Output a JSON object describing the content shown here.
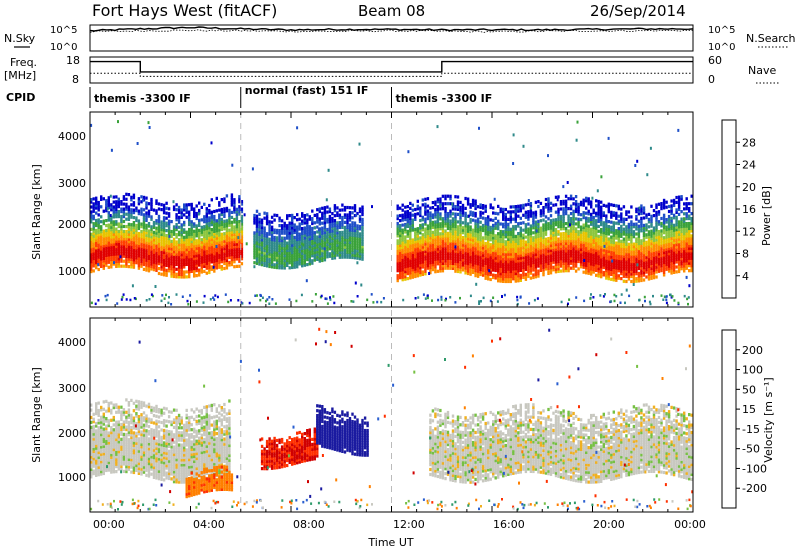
{
  "header": {
    "title": "Fort Hays West (fitACF)",
    "beam": "Beam 08",
    "date": "26/Sep/2014"
  },
  "noise_panel": {
    "left_label": "N.Sky",
    "right_label": "N.Search",
    "left_ticks": [
      "10^5",
      "10^0"
    ],
    "right_ticks": [
      "10^5",
      "10^0"
    ]
  },
  "freq_panel": {
    "left_label_line1": "Freq.",
    "left_label_line2": "[MHz]",
    "right_label": "Nave",
    "left_ticks": [
      "18",
      "8"
    ],
    "right_ticks": [
      "60",
      "0"
    ]
  },
  "cpid": {
    "label": "CPID",
    "segments": [
      {
        "name": "themis -3300 IF",
        "start_h": 0,
        "end_h": 6
      },
      {
        "name": "normal (fast) 151 IF",
        "start_h": 6,
        "end_h": 12
      },
      {
        "name": "themis -3300 IF",
        "start_h": 12,
        "end_h": 24
      }
    ]
  },
  "x_axis": {
    "label": "Time UT",
    "ticks": [
      "00:00",
      "04:00",
      "08:00",
      "12:00",
      "16:00",
      "20:00",
      "00:00"
    ]
  },
  "power_panel": {
    "ylabel": "Slant Range [km]",
    "yticks": [
      "1000",
      "2000",
      "3000",
      "4000"
    ],
    "colorbar_label": "Power [dB]",
    "colorbar_ticks": [
      "4",
      "8",
      "12",
      "16",
      "20",
      "24",
      "28"
    ],
    "colors": [
      "#0000cc",
      "#1f4fc8",
      "#2f8a8a",
      "#3aa23a",
      "#8cc63f",
      "#e8c400",
      "#ff8c00",
      "#ff4000",
      "#e00000"
    ]
  },
  "velocity_panel": {
    "ylabel": "Slant Range [km]",
    "yticks": [
      "1000",
      "2000",
      "3000",
      "4000"
    ],
    "colorbar_label": "Velocity [m s⁻¹]",
    "colorbar_ticks": [
      "200",
      "100",
      "50",
      "15",
      "-15",
      "-50",
      "-100",
      "-200"
    ],
    "colors": [
      "#1a1aa0",
      "#2a5fd0",
      "#2e9a6a",
      "#76c043",
      "#c8c8c0",
      "#f0b020",
      "#ff8000",
      "#ff3000",
      "#d00000"
    ]
  },
  "chart_data": [
    {
      "type": "line",
      "name": "noise",
      "x_hours": [
        0,
        2,
        4,
        6,
        8,
        10,
        12,
        14,
        16,
        18,
        20,
        22,
        24
      ],
      "series": [
        {
          "name": "N.Sky",
          "log_values": [
            4.0,
            4.4,
            4.7,
            4.4,
            4.2,
            4.3,
            4.3,
            4.2,
            4.2,
            4.2,
            4.3,
            4.4,
            4.4
          ]
        },
        {
          "name": "N.Search",
          "log_values": [
            3.8,
            4.0,
            4.1,
            4.0,
            3.9,
            3.9,
            4.0,
            3.9,
            3.8,
            3.9,
            4.0,
            4.0,
            4.1
          ]
        }
      ],
      "ylim": [
        0,
        5
      ]
    },
    {
      "type": "line",
      "name": "frequency-nave",
      "series": [
        {
          "name": "Freq. [MHz]",
          "points": [
            [
              0,
              16.5
            ],
            [
              2,
              16.5
            ],
            [
              2,
              12.2
            ],
            [
              14,
              12.2
            ],
            [
              14,
              16.5
            ],
            [
              24,
              16.5
            ]
          ]
        },
        {
          "name": "Nave",
          "points": [
            [
              0,
              22
            ],
            [
              2,
              22
            ],
            [
              2,
              14
            ],
            [
              14,
              14
            ],
            [
              14,
              22
            ],
            [
              24,
              22
            ]
          ]
        }
      ],
      "ylim_freq": [
        8,
        18
      ],
      "ylim_nave": [
        0,
        60
      ]
    },
    {
      "type": "heatmap",
      "name": "power",
      "x_range_hours": [
        0,
        24
      ],
      "y_range_km": [
        180,
        4500
      ],
      "value_range_db": [
        0,
        30
      ],
      "bands": [
        {
          "start_h": 0.0,
          "end_h": 6.0,
          "range_km": [
            1000,
            2600
          ],
          "peak_km": 1300,
          "peak_db": 28
        },
        {
          "start_h": 6.5,
          "end_h": 10.8,
          "range_km": [
            1200,
            2400
          ],
          "peak_km": 1600,
          "peak_db": 10
        },
        {
          "start_h": 12.2,
          "end_h": 24.0,
          "range_km": [
            900,
            2600
          ],
          "peak_km": 1100,
          "peak_db": 28
        }
      ]
    },
    {
      "type": "heatmap",
      "name": "velocity",
      "x_range_hours": [
        0,
        24
      ],
      "y_range_km": [
        180,
        4500
      ],
      "value_range_ms": [
        -250,
        250
      ],
      "bands": [
        {
          "start_h": 0.0,
          "end_h": 5.5,
          "range_km": [
            1000,
            2600
          ],
          "velocity": 0
        },
        {
          "start_h": 3.8,
          "end_h": 5.6,
          "range_km": [
            600,
            1100
          ],
          "velocity": -60
        },
        {
          "start_h": 6.8,
          "end_h": 9.0,
          "range_km": [
            1300,
            2000
          ],
          "velocity": -150
        },
        {
          "start_h": 9.0,
          "end_h": 11.0,
          "range_km": [
            1600,
            2500
          ],
          "velocity": 180
        },
        {
          "start_h": 13.5,
          "end_h": 24.0,
          "range_km": [
            1000,
            2500
          ],
          "velocity": 0
        }
      ]
    }
  ]
}
